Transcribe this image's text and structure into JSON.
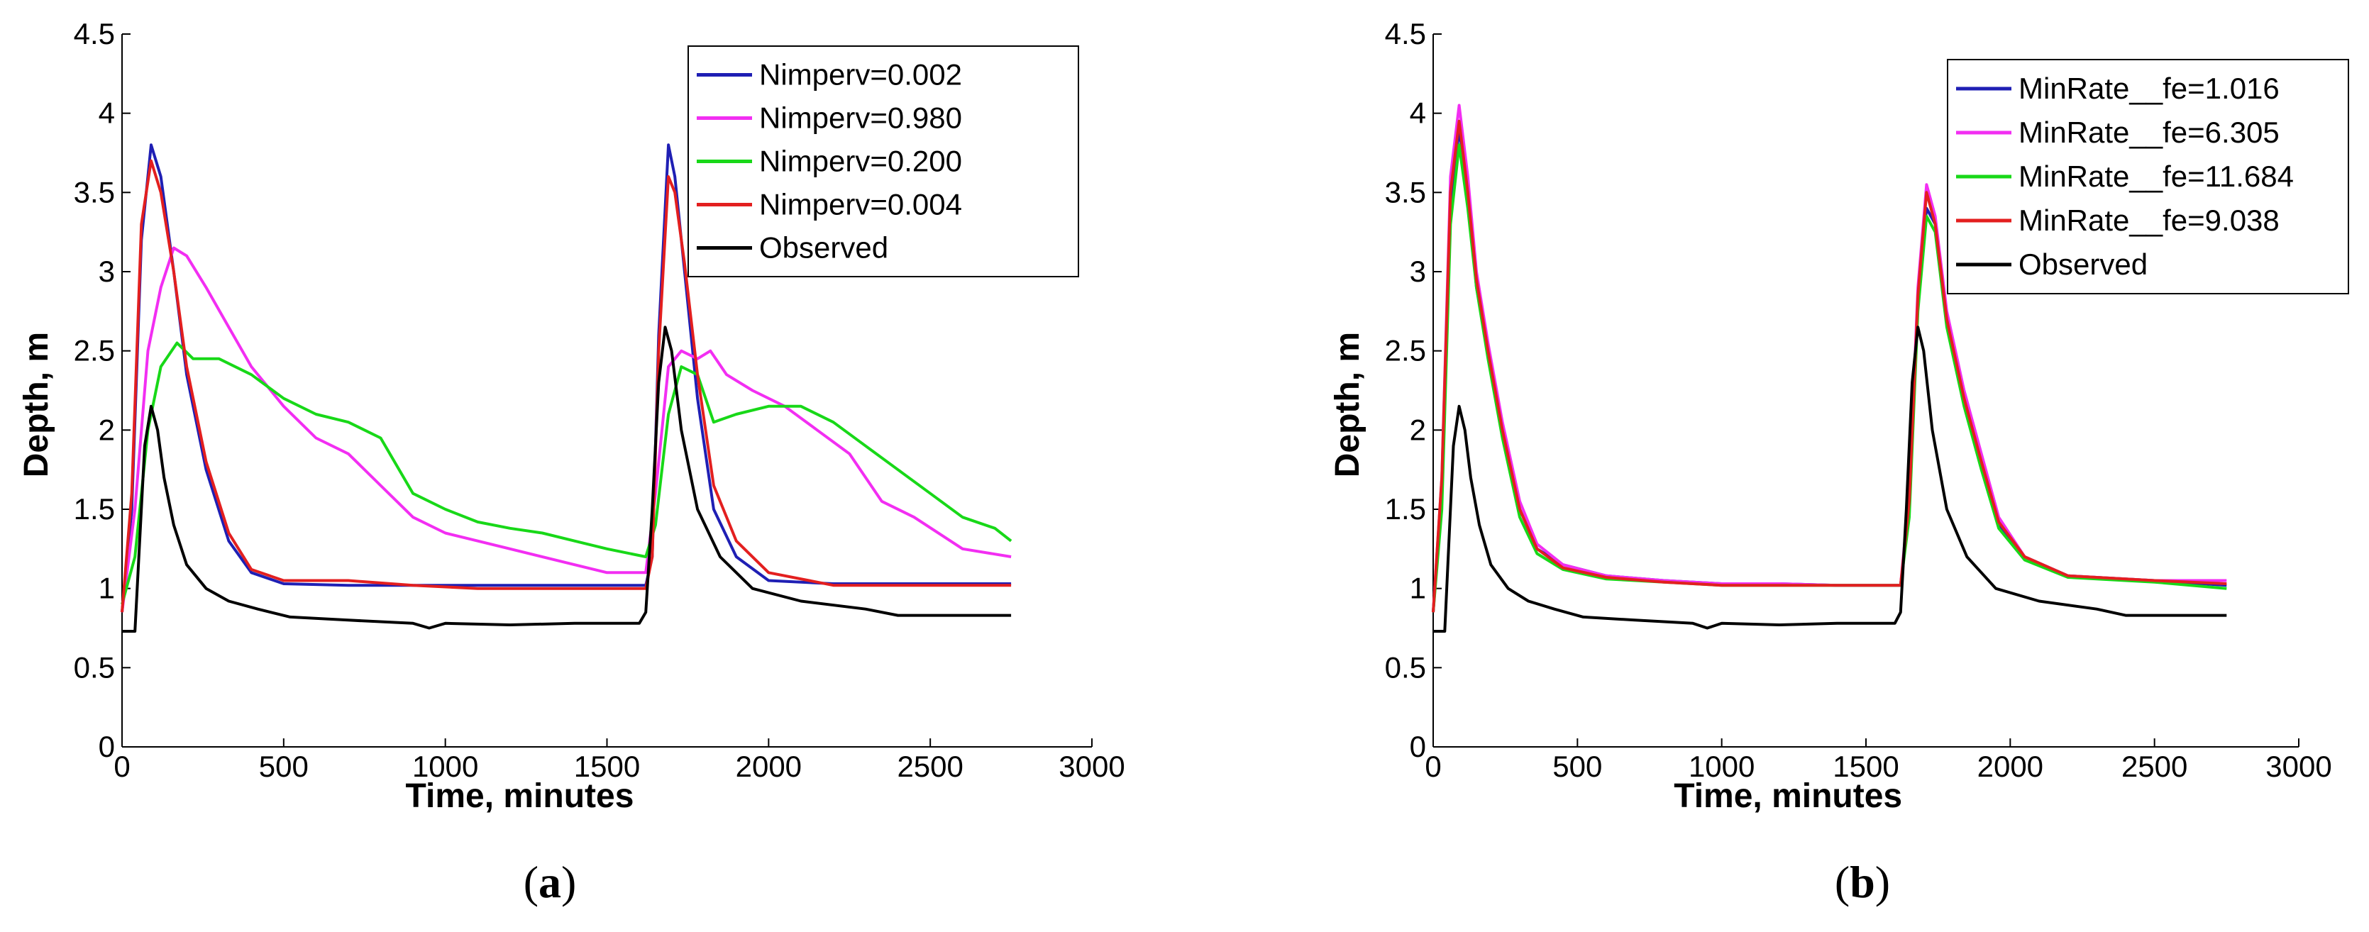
{
  "figure": {
    "panel_labels": [
      {
        "open": "(",
        "letter": "a",
        "close": ")"
      },
      {
        "open": "(",
        "letter": "b",
        "close": ")"
      }
    ]
  },
  "chart_data": [
    {
      "type": "line",
      "xlabel": "Time, minutes",
      "ylabel": "Depth, m",
      "xlim": [
        0,
        3000
      ],
      "ylim": [
        0,
        4.5
      ],
      "xticks": [
        0,
        500,
        1000,
        1500,
        2000,
        2500,
        3000
      ],
      "yticks": [
        0,
        0.5,
        1,
        1.5,
        2,
        2.5,
        3,
        3.5,
        4,
        4.5
      ],
      "ytick_labels": [
        "0",
        "0.5",
        "1",
        "1.5",
        "2",
        "2.5",
        "3",
        "3.5",
        "4",
        "4.5"
      ],
      "legend_position": "top-right",
      "series": [
        {
          "name": "Nimperv=0.002",
          "color": "#1f1fb4",
          "x": [
            0,
            30,
            60,
            90,
            120,
            160,
            200,
            260,
            330,
            400,
            500,
            700,
            900,
            1100,
            1300,
            1500,
            1620,
            1640,
            1660,
            1690,
            1710,
            1740,
            1780,
            1830,
            1900,
            2000,
            2200,
            2500,
            2750
          ],
          "y": [
            0.85,
            1.5,
            3.2,
            3.8,
            3.6,
            3.0,
            2.35,
            1.75,
            1.3,
            1.1,
            1.03,
            1.02,
            1.02,
            1.02,
            1.02,
            1.02,
            1.02,
            1.2,
            2.6,
            3.8,
            3.6,
            3.0,
            2.2,
            1.5,
            1.2,
            1.05,
            1.03,
            1.03,
            1.03
          ]
        },
        {
          "name": "Nimperv=0.980",
          "color": "#f22ef2",
          "x": [
            0,
            40,
            80,
            120,
            160,
            200,
            260,
            330,
            400,
            500,
            600,
            700,
            800,
            900,
            1000,
            1200,
            1400,
            1500,
            1620,
            1650,
            1690,
            1730,
            1780,
            1820,
            1870,
            1950,
            2050,
            2150,
            2250,
            2350,
            2450,
            2600,
            2750
          ],
          "y": [
            0.85,
            1.5,
            2.5,
            2.9,
            3.15,
            3.1,
            2.9,
            2.65,
            2.4,
            2.15,
            1.95,
            1.85,
            1.65,
            1.45,
            1.35,
            1.25,
            1.15,
            1.1,
            1.1,
            1.6,
            2.4,
            2.5,
            2.45,
            2.5,
            2.35,
            2.25,
            2.15,
            2.0,
            1.85,
            1.55,
            1.45,
            1.25,
            1.2
          ]
        },
        {
          "name": "Nimperv=0.200",
          "color": "#18d818",
          "x": [
            0,
            40,
            80,
            120,
            170,
            220,
            300,
            400,
            500,
            600,
            700,
            800,
            900,
            1000,
            1100,
            1200,
            1300,
            1400,
            1500,
            1620,
            1650,
            1690,
            1730,
            1780,
            1830,
            1900,
            2000,
            2100,
            2200,
            2300,
            2400,
            2500,
            2600,
            2700,
            2750
          ],
          "y": [
            0.9,
            1.2,
            2.0,
            2.4,
            2.55,
            2.45,
            2.45,
            2.35,
            2.2,
            2.1,
            2.05,
            1.95,
            1.6,
            1.5,
            1.42,
            1.38,
            1.35,
            1.3,
            1.25,
            1.2,
            1.4,
            2.1,
            2.4,
            2.35,
            2.05,
            2.1,
            2.15,
            2.15,
            2.05,
            1.9,
            1.75,
            1.6,
            1.45,
            1.38,
            1.3
          ]
        },
        {
          "name": "Nimperv=0.004",
          "color": "#e31f1f",
          "x": [
            0,
            30,
            60,
            90,
            120,
            160,
            200,
            260,
            330,
            400,
            500,
            700,
            900,
            1100,
            1300,
            1500,
            1620,
            1640,
            1660,
            1690,
            1710,
            1740,
            1780,
            1830,
            1900,
            2000,
            2200,
            2500,
            2750
          ],
          "y": [
            0.85,
            1.6,
            3.3,
            3.7,
            3.5,
            3.0,
            2.4,
            1.8,
            1.35,
            1.12,
            1.05,
            1.05,
            1.02,
            1.0,
            1.0,
            1.0,
            1.0,
            1.2,
            2.5,
            3.6,
            3.5,
            3.05,
            2.35,
            1.65,
            1.3,
            1.1,
            1.02,
            1.02,
            1.02
          ]
        },
        {
          "name": "Observed",
          "color": "#000000",
          "x": [
            0,
            40,
            70,
            90,
            110,
            130,
            160,
            200,
            260,
            330,
            420,
            520,
            700,
            900,
            950,
            1000,
            1200,
            1400,
            1600,
            1620,
            1640,
            1660,
            1680,
            1700,
            1730,
            1780,
            1850,
            1950,
            2100,
            2300,
            2400,
            2550,
            2750
          ],
          "y": [
            0.73,
            0.73,
            1.9,
            2.15,
            2.0,
            1.7,
            1.4,
            1.15,
            1.0,
            0.92,
            0.87,
            0.82,
            0.8,
            0.78,
            0.75,
            0.78,
            0.77,
            0.78,
            0.78,
            0.85,
            1.5,
            2.3,
            2.65,
            2.5,
            2.0,
            1.5,
            1.2,
            1.0,
            0.92,
            0.87,
            0.83,
            0.83,
            0.83
          ]
        }
      ]
    },
    {
      "type": "line",
      "xlabel": "Time, minutes",
      "ylabel": "Depth, m",
      "xlim": [
        0,
        3000
      ],
      "ylim": [
        0,
        4.5
      ],
      "xticks": [
        0,
        500,
        1000,
        1500,
        2000,
        2500,
        3000
      ],
      "yticks": [
        0,
        0.5,
        1,
        1.5,
        2,
        2.5,
        3,
        3.5,
        4,
        4.5
      ],
      "ytick_labels": [
        "0",
        "0.5",
        "1",
        "1.5",
        "2",
        "2.5",
        "3",
        "3.5",
        "4",
        "4.5"
      ],
      "legend_position": "top-right",
      "series": [
        {
          "name": "MinRate__fe=1.016",
          "color": "#1f1fb4",
          "x": [
            0,
            30,
            60,
            90,
            120,
            150,
            190,
            240,
            300,
            360,
            450,
            600,
            800,
            1000,
            1200,
            1400,
            1620,
            1650,
            1680,
            1710,
            1740,
            1780,
            1840,
            1900,
            1960,
            2050,
            2200,
            2500,
            2750
          ],
          "y": [
            0.85,
            1.6,
            3.4,
            3.9,
            3.5,
            2.9,
            2.5,
            2.0,
            1.5,
            1.25,
            1.15,
            1.08,
            1.05,
            1.03,
            1.03,
            1.02,
            1.02,
            1.5,
            2.8,
            3.4,
            3.3,
            2.7,
            2.2,
            1.8,
            1.4,
            1.2,
            1.08,
            1.05,
            1.02
          ]
        },
        {
          "name": "MinRate__fe=6.305",
          "color": "#f22ef2",
          "x": [
            0,
            30,
            60,
            90,
            120,
            150,
            190,
            240,
            300,
            360,
            450,
            600,
            800,
            1000,
            1200,
            1400,
            1620,
            1650,
            1680,
            1710,
            1740,
            1780,
            1840,
            1900,
            1960,
            2050,
            2200,
            2500,
            2750
          ],
          "y": [
            0.85,
            1.7,
            3.6,
            4.05,
            3.6,
            3.0,
            2.55,
            2.05,
            1.55,
            1.28,
            1.15,
            1.08,
            1.05,
            1.03,
            1.03,
            1.02,
            1.02,
            1.6,
            2.9,
            3.55,
            3.35,
            2.75,
            2.25,
            1.85,
            1.45,
            1.2,
            1.08,
            1.05,
            1.05
          ]
        },
        {
          "name": "MinRate__fe=11.684",
          "color": "#18d818",
          "x": [
            0,
            30,
            60,
            90,
            120,
            150,
            190,
            240,
            300,
            360,
            450,
            600,
            800,
            1000,
            1200,
            1400,
            1620,
            1650,
            1680,
            1710,
            1740,
            1780,
            1840,
            1900,
            1960,
            2050,
            2200,
            2500,
            2750
          ],
          "y": [
            0.85,
            1.5,
            3.3,
            3.8,
            3.4,
            2.9,
            2.45,
            1.95,
            1.45,
            1.22,
            1.12,
            1.06,
            1.04,
            1.02,
            1.02,
            1.02,
            1.02,
            1.45,
            2.75,
            3.35,
            3.25,
            2.65,
            2.15,
            1.75,
            1.38,
            1.18,
            1.07,
            1.04,
            1.0
          ]
        },
        {
          "name": "MinRate__fe=9.038",
          "color": "#e31f1f",
          "x": [
            0,
            30,
            60,
            90,
            120,
            150,
            190,
            240,
            300,
            360,
            450,
            600,
            800,
            1000,
            1200,
            1400,
            1620,
            1650,
            1680,
            1710,
            1740,
            1780,
            1840,
            1900,
            1960,
            2050,
            2200,
            2500,
            2750
          ],
          "y": [
            0.85,
            1.7,
            3.5,
            3.95,
            3.5,
            2.95,
            2.5,
            2.0,
            1.5,
            1.25,
            1.13,
            1.07,
            1.04,
            1.02,
            1.02,
            1.02,
            1.02,
            1.55,
            2.85,
            3.5,
            3.3,
            2.7,
            2.2,
            1.8,
            1.42,
            1.2,
            1.08,
            1.05,
            1.03
          ]
        },
        {
          "name": "Observed",
          "color": "#000000",
          "x": [
            0,
            40,
            70,
            90,
            110,
            130,
            160,
            200,
            260,
            330,
            420,
            520,
            700,
            900,
            950,
            1000,
            1200,
            1400,
            1600,
            1620,
            1640,
            1660,
            1680,
            1700,
            1730,
            1780,
            1850,
            1950,
            2100,
            2300,
            2400,
            2550,
            2750
          ],
          "y": [
            0.73,
            0.73,
            1.9,
            2.15,
            2.0,
            1.7,
            1.4,
            1.15,
            1.0,
            0.92,
            0.87,
            0.82,
            0.8,
            0.78,
            0.75,
            0.78,
            0.77,
            0.78,
            0.78,
            0.85,
            1.5,
            2.3,
            2.65,
            2.5,
            2.0,
            1.5,
            1.2,
            1.0,
            0.92,
            0.87,
            0.83,
            0.83,
            0.83
          ]
        }
      ]
    }
  ]
}
